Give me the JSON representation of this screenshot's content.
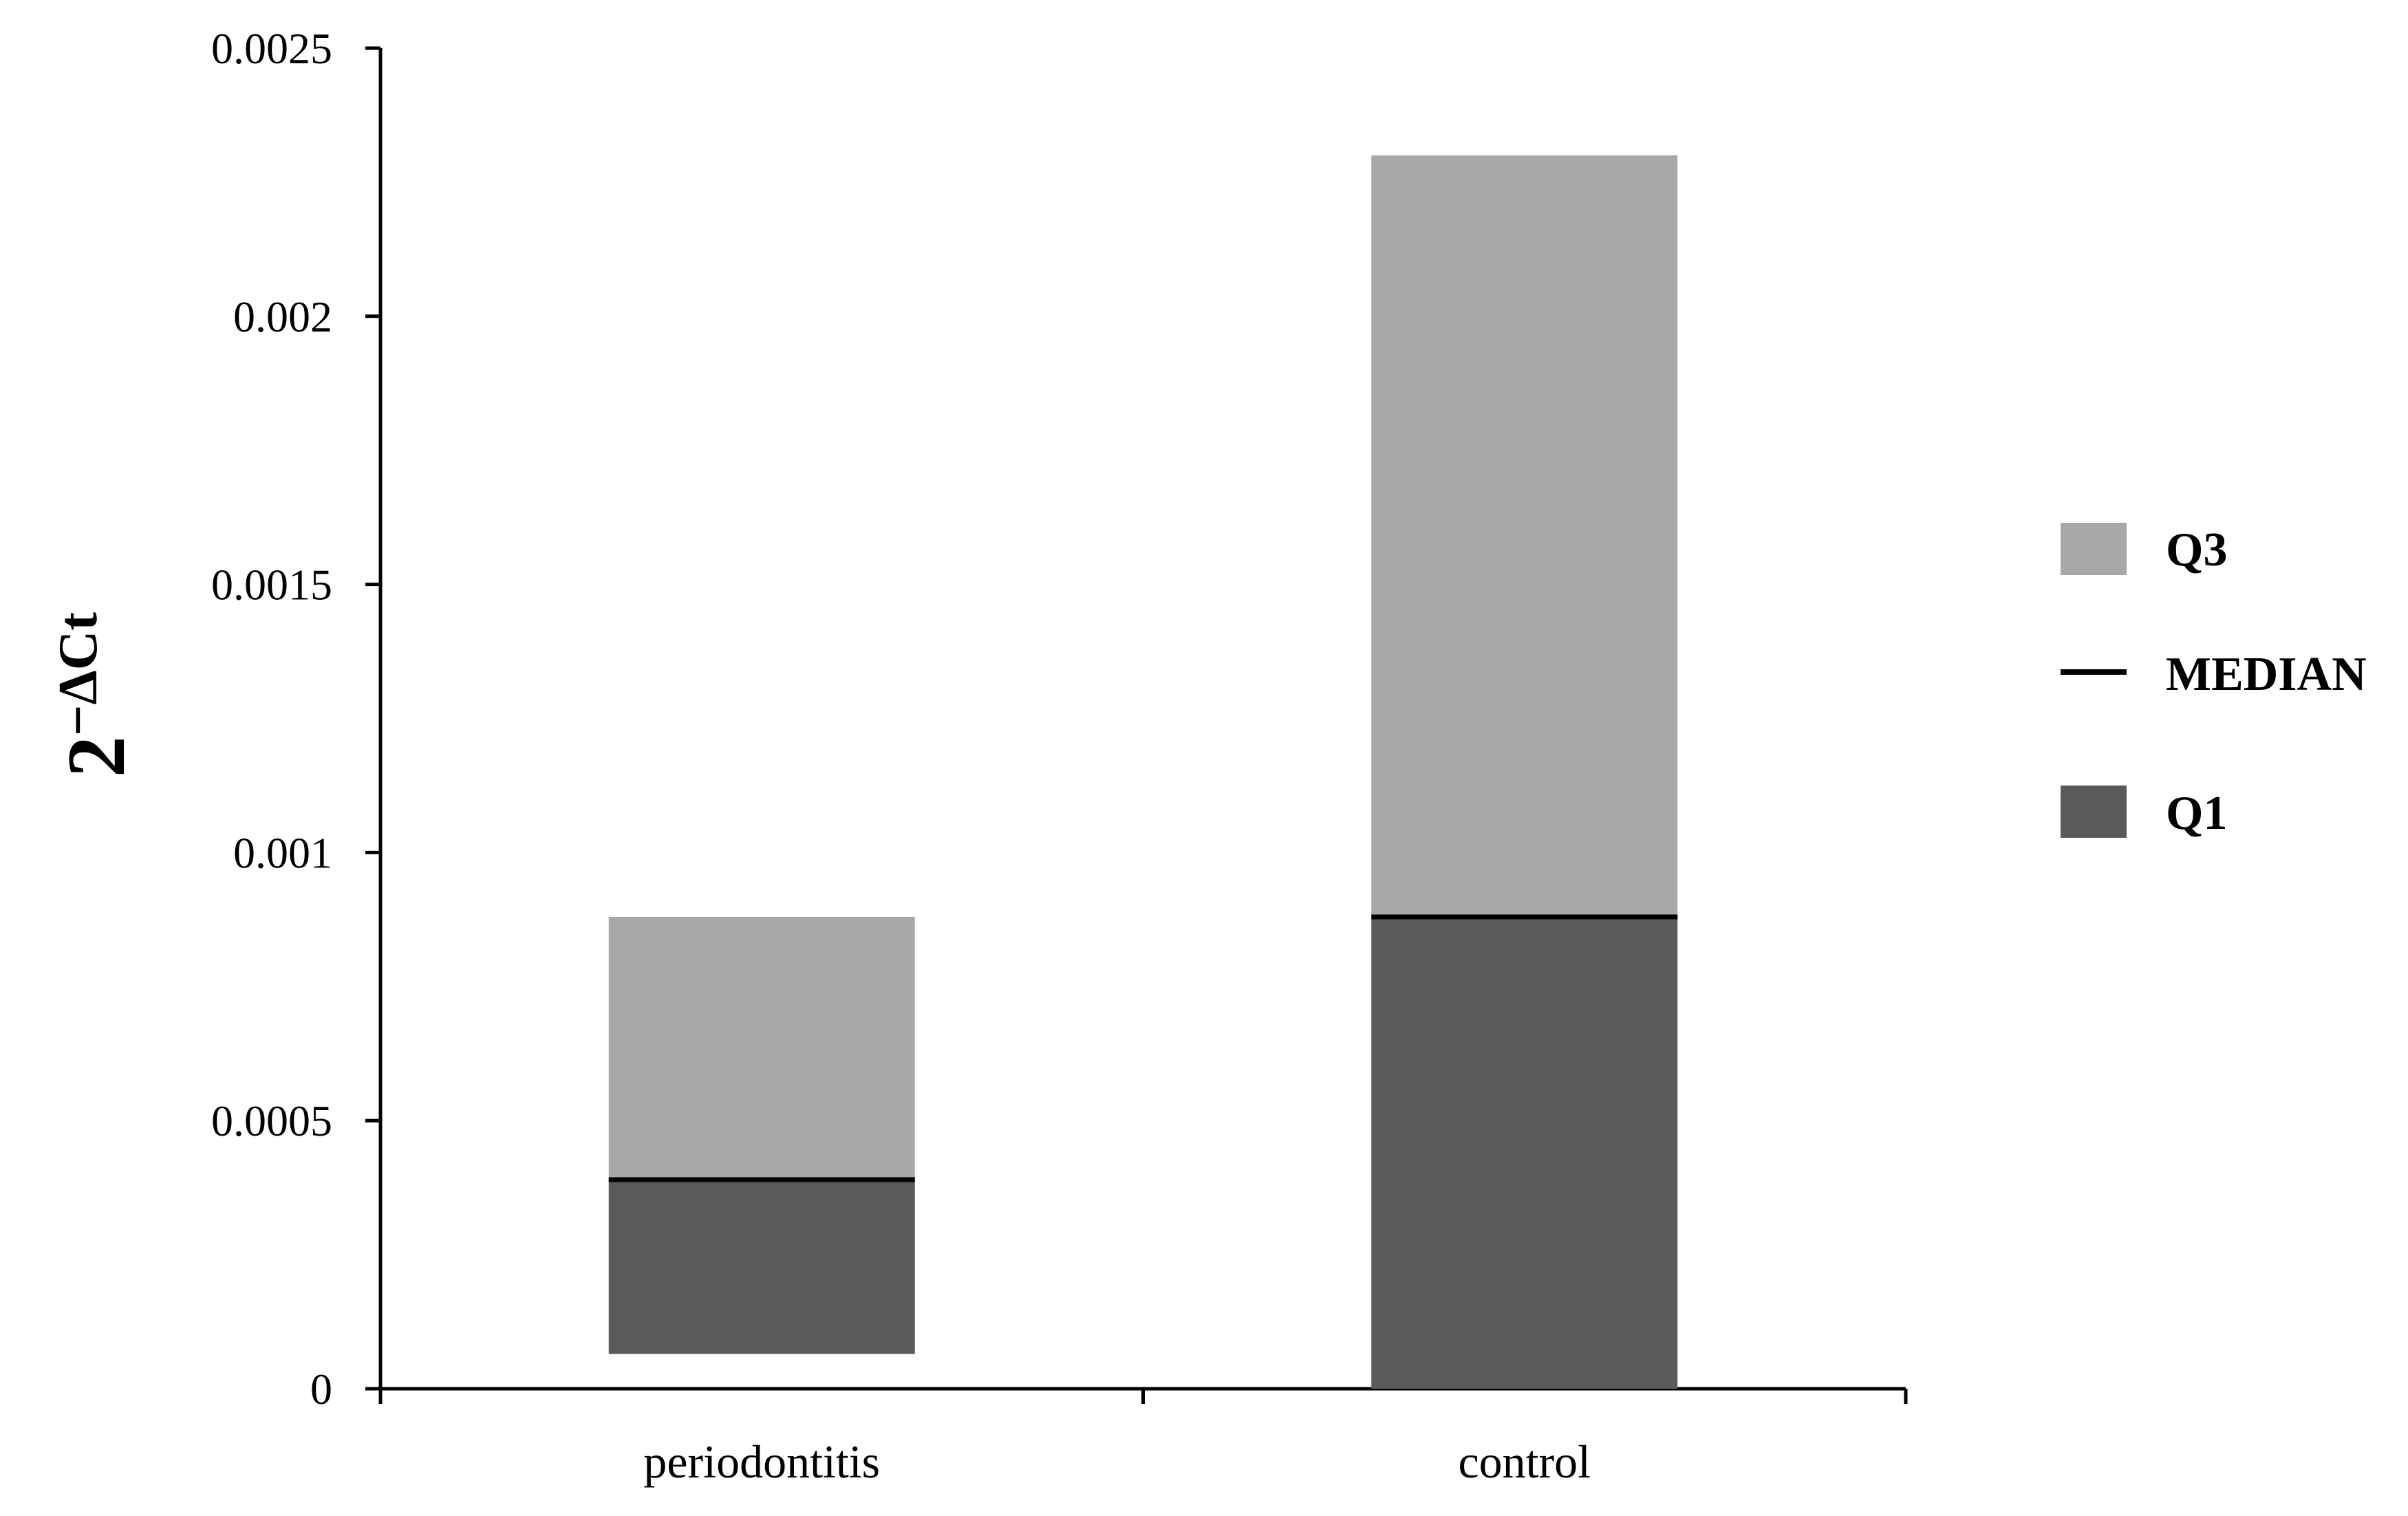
{
  "chart_data": {
    "type": "bar",
    "subtype": "stacked-floating-quartile",
    "categories": [
      "periodontitis",
      "control"
    ],
    "series": [
      {
        "name": "Q3",
        "values": [
          0.00088,
          0.0023
        ],
        "color": "#a8a8a8"
      },
      {
        "name": "MEDIAN",
        "values": [
          0.00039,
          0.00088
        ],
        "color": "#000000"
      },
      {
        "name": "Q1",
        "values": [
          6.5e-05,
          0.0
        ],
        "color": "#5a5a5a"
      }
    ],
    "ylabel_base": "2",
    "ylabel_sup": "−ΔCt",
    "ylim": [
      0,
      0.0025
    ],
    "yticks": [
      0,
      0.0005,
      0.001,
      0.0015,
      0.002,
      0.0025
    ],
    "ytick_labels": [
      "0",
      "0.0005",
      "0.001",
      "0.0015",
      "0.002",
      "0.0025"
    ],
    "grid": false,
    "legend_position": "right"
  }
}
